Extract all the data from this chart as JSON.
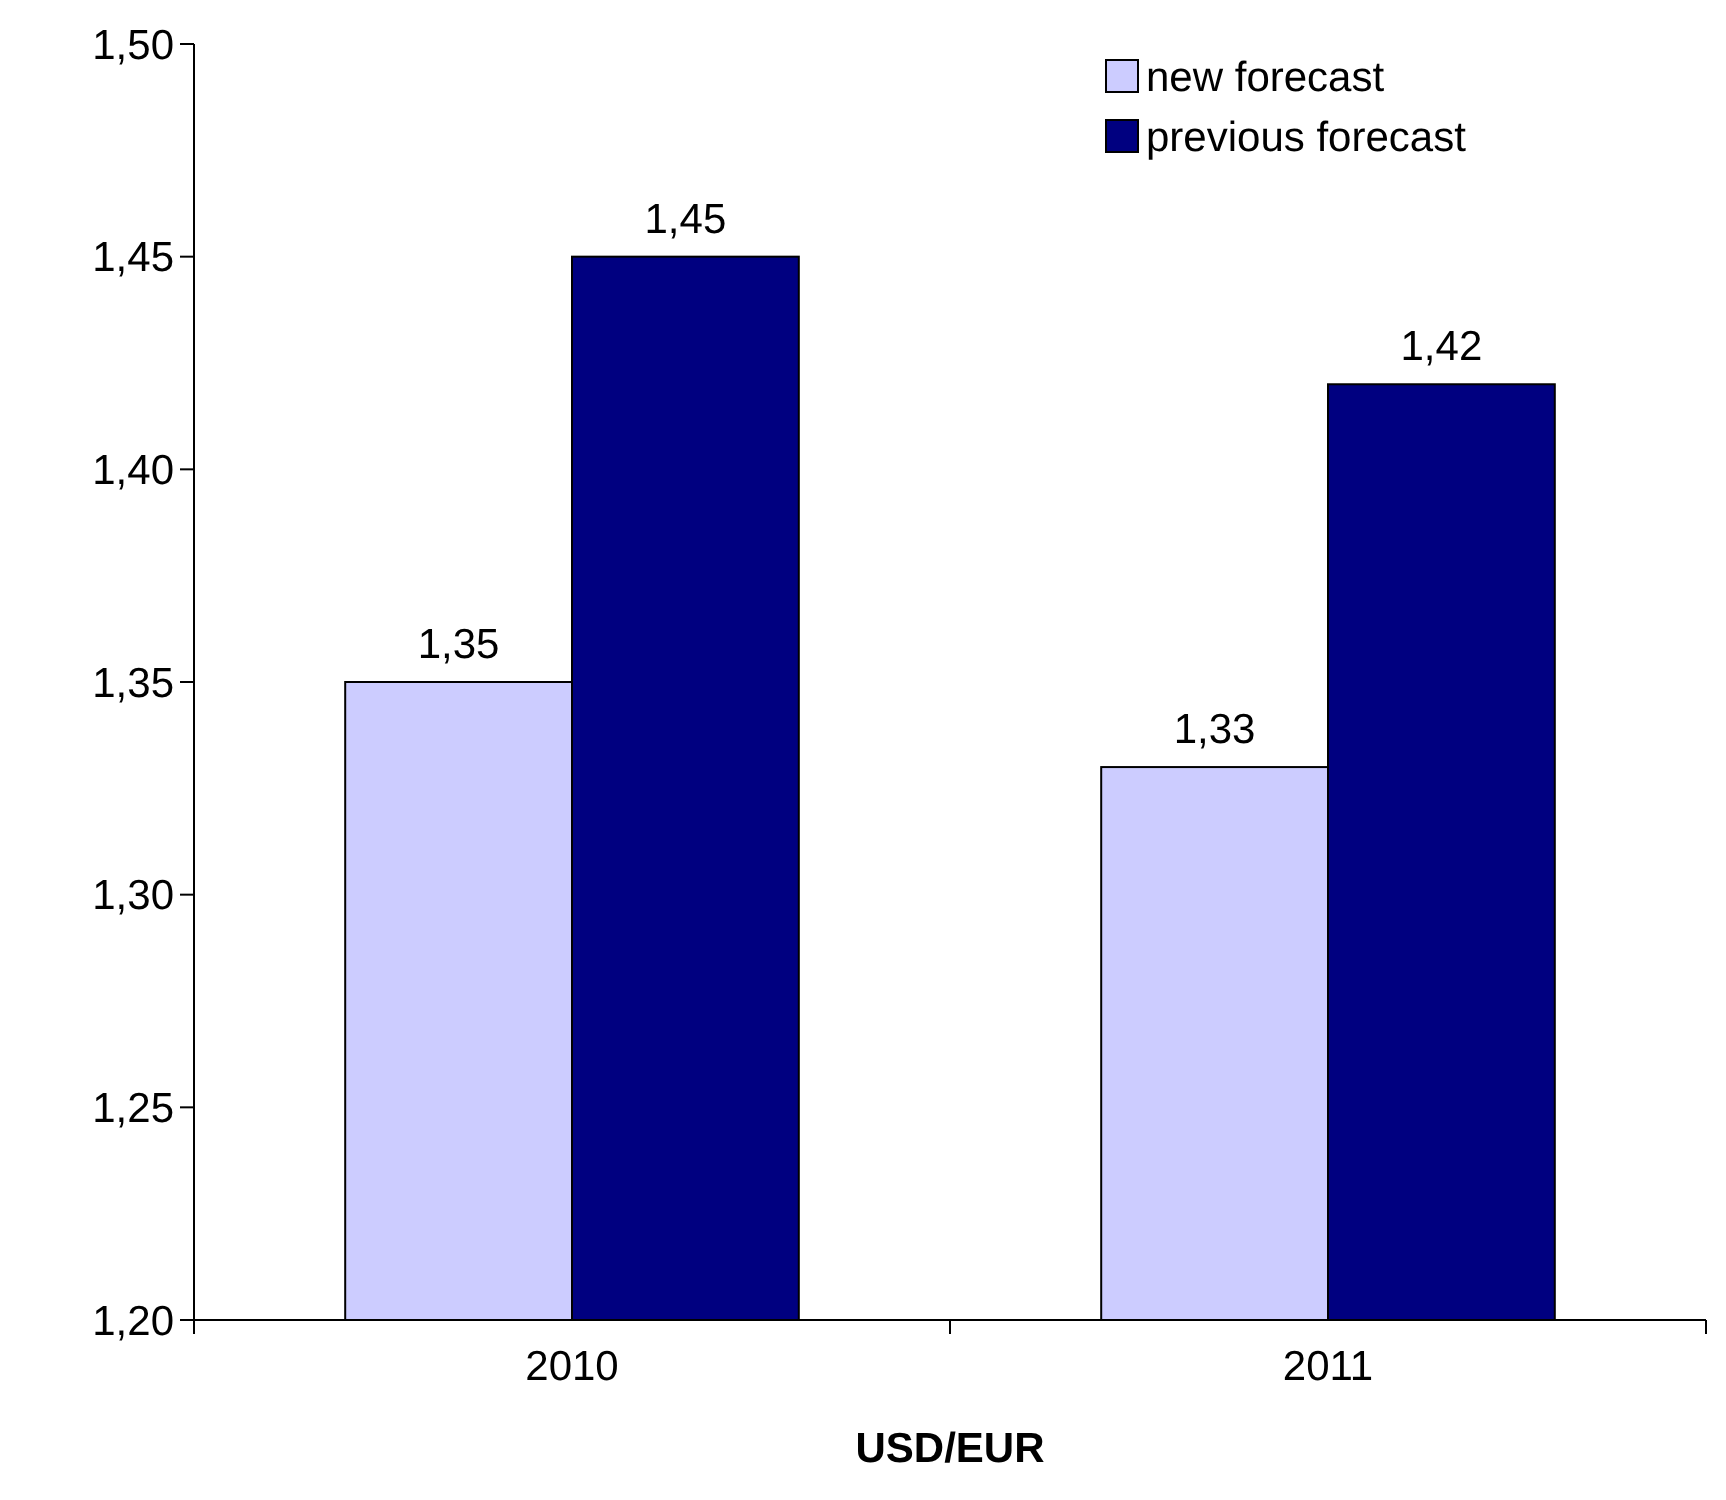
{
  "chart_data": {
    "type": "bar",
    "xlabel": "USD/EUR",
    "categories": [
      "2010",
      "2011"
    ],
    "series": [
      {
        "name": "new forecast",
        "color": "#ccccff",
        "values": [
          1.35,
          1.33
        ],
        "value_labels": [
          "1,35",
          "1,33"
        ]
      },
      {
        "name": "previous forecast",
        "color": "#000080",
        "values": [
          1.45,
          1.42
        ],
        "value_labels": [
          "1,45",
          "1,42"
        ]
      }
    ],
    "ylim": [
      1.2,
      1.5
    ],
    "yticks": [
      {
        "value": 1.2,
        "label": "1,20"
      },
      {
        "value": 1.25,
        "label": "1,25"
      },
      {
        "value": 1.3,
        "label": "1,30"
      },
      {
        "value": 1.35,
        "label": "1,35"
      },
      {
        "value": 1.4,
        "label": "1,40"
      },
      {
        "value": 1.45,
        "label": "1,45"
      },
      {
        "value": 1.5,
        "label": "1,50"
      }
    ],
    "grid": false,
    "legend": "top right"
  }
}
